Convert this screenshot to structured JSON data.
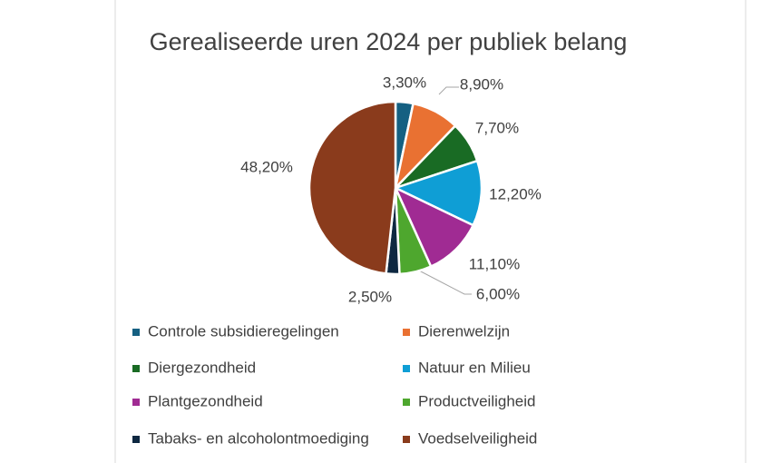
{
  "chart_data": {
    "type": "pie",
    "title": "Gerealiseerde uren 2024 per publiek belang",
    "categories": [
      "Controle subsidieregelingen",
      "Dierenwelzijn",
      "Diergezondheid",
      "Natuur en Milieu",
      "Plantgezondheid",
      "Productveiligheid",
      "Tabaks- en alcoholontmoediging",
      "Voedselveiligheid"
    ],
    "values": [
      3.3,
      8.9,
      7.7,
      12.2,
      11.1,
      6.0,
      2.5,
      48.2
    ],
    "value_labels": [
      "3,30%",
      "8,90%",
      "7,70%",
      "12,20%",
      "11,10%",
      "6,00%",
      "2,50%",
      "48,20%"
    ],
    "colors": [
      "#156082",
      "#e97132",
      "#196b24",
      "#0f9ed5",
      "#a02b93",
      "#4ea72e",
      "#0e2841",
      "#8a3b1c"
    ],
    "legend": "bottom"
  }
}
